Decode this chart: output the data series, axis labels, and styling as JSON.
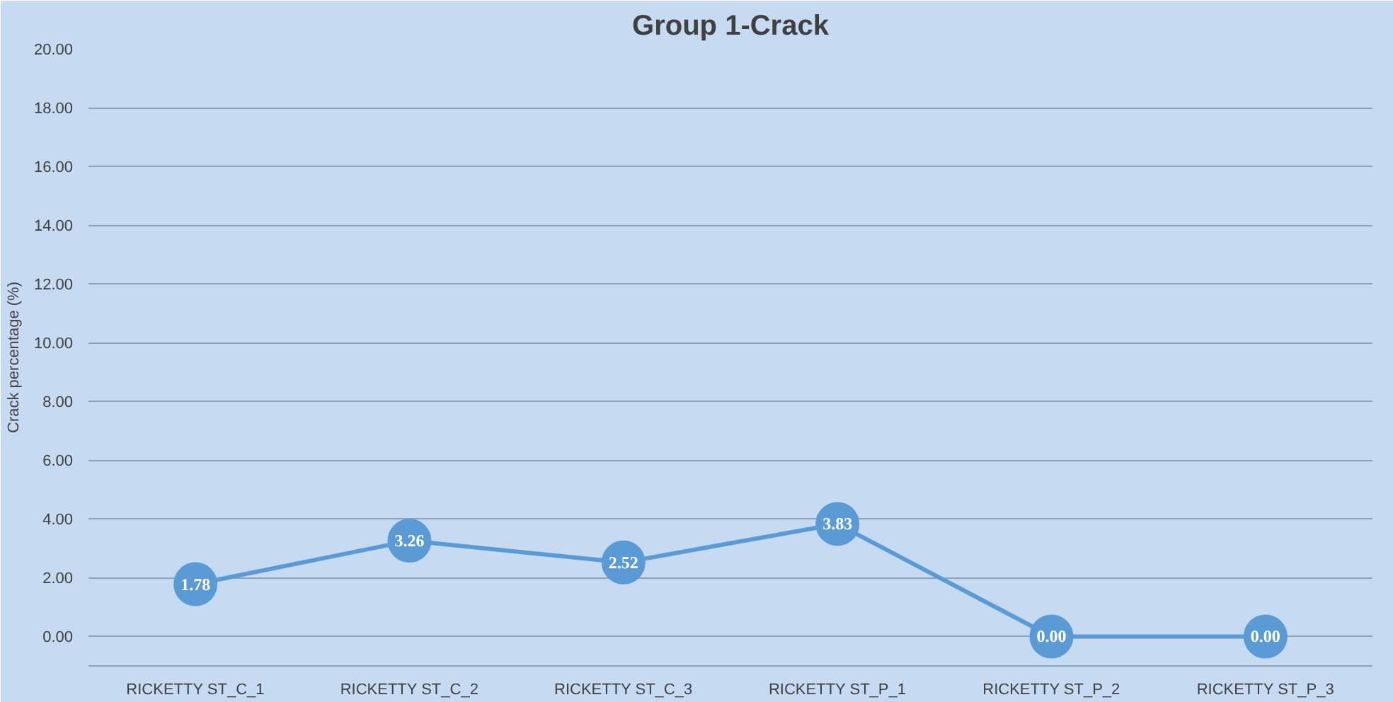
{
  "chart_data": {
    "type": "line",
    "title": "Group 1-Crack",
    "ylabel": "Crack percentage (%)",
    "categories": [
      "RICKETTY ST_C_1",
      "RICKETTY ST_C_2",
      "RICKETTY ST_C_3",
      "RICKETTY ST_P_1",
      "RICKETTY ST_P_2",
      "RICKETTY ST_P_3"
    ],
    "series": [
      {
        "color": "#5b9bd5",
        "values": [
          1.78,
          3.26,
          2.52,
          3.83,
          0,
          0
        ],
        "value_labels": [
          "1.78",
          "3.26",
          "2.52",
          "3.83",
          "0.00",
          "0.00"
        ]
      }
    ],
    "ylim": [
      -1,
      20
    ],
    "yticks": [
      {
        "value": 0,
        "label": "0.00"
      },
      {
        "value": 2,
        "label": "2.00"
      },
      {
        "value": 4,
        "label": "4.00"
      },
      {
        "value": 6,
        "label": "6.00"
      },
      {
        "value": 8,
        "label": "8.00"
      },
      {
        "value": 10,
        "label": "10.00"
      },
      {
        "value": 12,
        "label": "12.00"
      },
      {
        "value": 14,
        "label": "14.00"
      },
      {
        "value": 16,
        "label": "16.00"
      },
      {
        "value": 18,
        "label": "18.00"
      },
      {
        "value": 20,
        "label": "20.00"
      }
    ],
    "grid": "y",
    "marker": "circle",
    "line_style": "solid"
  }
}
